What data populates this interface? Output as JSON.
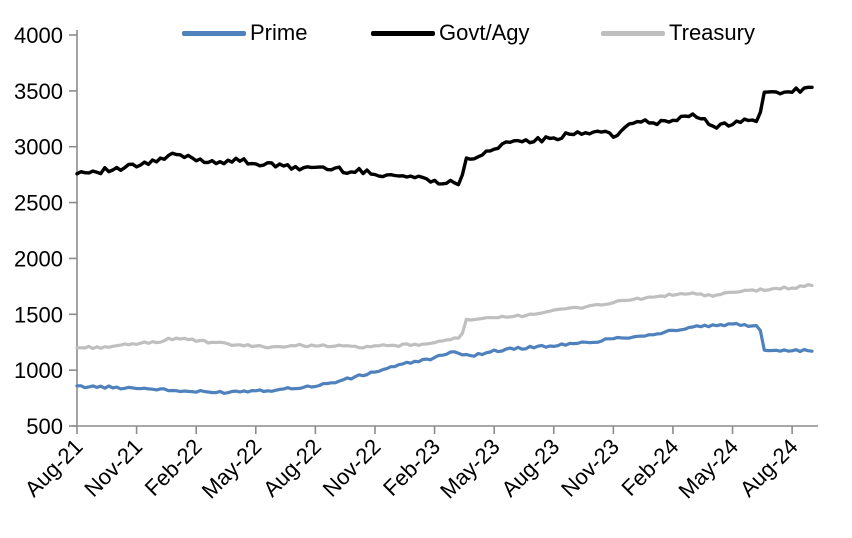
{
  "chart_data": {
    "type": "line",
    "title": "",
    "xlabel": "",
    "ylabel": "",
    "ylim": [
      500,
      4000
    ],
    "y_ticks": [
      4000,
      3500,
      3000,
      2500,
      2000,
      1500,
      1000,
      500
    ],
    "x_tick_labels": [
      "Aug-21",
      "Nov-21",
      "Feb-22",
      "May-22",
      "Aug-22",
      "Nov-22",
      "Feb-23",
      "May-23",
      "Aug-23",
      "Nov-23",
      "Feb-24",
      "May-24",
      "Aug-24"
    ],
    "x_tick_step_months": 3,
    "grid": false,
    "legend_position": "top",
    "axis_color": "#8c8c8c",
    "text_color": "#000000",
    "background_color": "#ffffff",
    "categories": [
      "Aug-21",
      "Sep-21",
      "Oct-21",
      "Nov-21",
      "Dec-21",
      "Jan-22",
      "Feb-22",
      "Mar-22",
      "Apr-22",
      "May-22",
      "Jun-22",
      "Jul-22",
      "Aug-22",
      "Sep-22",
      "Oct-22",
      "Nov-22",
      "Dec-22",
      "Jan-23",
      "Feb-23",
      "Mar-23",
      "Apr-23",
      "May-23",
      "Jun-23",
      "Jul-23",
      "Aug-23",
      "Sep-23",
      "Oct-23",
      "Nov-23",
      "Dec-23",
      "Jan-24",
      "Feb-24",
      "Mar-24",
      "Apr-24",
      "May-24",
      "Jun-24",
      "Jul-24",
      "Aug-24",
      "Sep-24"
    ],
    "series": [
      {
        "name": "Prime",
        "color": "#4F81BD",
        "values": [
          855,
          850,
          845,
          840,
          828,
          815,
          806,
          800,
          810,
          818,
          823,
          840,
          858,
          892,
          938,
          985,
          1035,
          1075,
          1112,
          1160,
          1130,
          1175,
          1190,
          1205,
          1218,
          1235,
          1253,
          1285,
          1300,
          1320,
          1355,
          1382,
          1400,
          1408,
          1400,
          1180,
          1178,
          1170
        ]
      },
      {
        "name": "Govt/Agy",
        "color": "#000000",
        "values": [
          2770,
          2782,
          2800,
          2826,
          2870,
          2930,
          2885,
          2862,
          2882,
          2852,
          2826,
          2812,
          2816,
          2800,
          2780,
          2762,
          2742,
          2726,
          2700,
          2672,
          2900,
          2990,
          3040,
          3056,
          3068,
          3120,
          3140,
          3090,
          3220,
          3210,
          3235,
          3290,
          3185,
          3210,
          3235,
          3485,
          3500,
          3532
        ]
      },
      {
        "name": "Treasury",
        "color": "#BFBFBF",
        "values": [
          1200,
          1205,
          1215,
          1235,
          1252,
          1290,
          1262,
          1243,
          1225,
          1213,
          1210,
          1218,
          1222,
          1215,
          1208,
          1213,
          1220,
          1228,
          1240,
          1292,
          1450,
          1465,
          1480,
          1505,
          1532,
          1556,
          1580,
          1605,
          1632,
          1655,
          1672,
          1690,
          1660,
          1695,
          1715,
          1725,
          1738,
          1758
        ]
      }
    ]
  },
  "legend": {
    "items": [
      {
        "label": "Prime"
      },
      {
        "label": "Govt/Agy"
      },
      {
        "label": "Treasury"
      }
    ]
  }
}
